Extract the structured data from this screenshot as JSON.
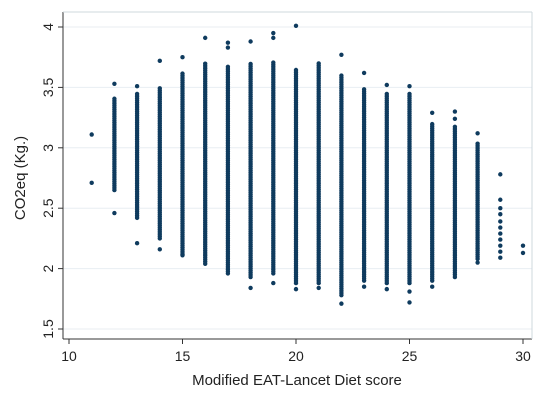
{
  "chart_data": {
    "type": "scatter",
    "xlabel": "Modified EAT-Lancet Diet score",
    "ylabel": "CO2eq (Kg.)",
    "xlim": [
      10,
      30
    ],
    "ylim": [
      1.5,
      4
    ],
    "xticks": [
      "10",
      "15",
      "20",
      "25",
      "30"
    ],
    "yticks": [
      "1.5",
      "2",
      "2.5",
      "3",
      "3.5",
      "4"
    ],
    "grid": "horizontal",
    "marker_color": "#0f3b5e",
    "point_columns": [
      {
        "x": 11,
        "y_points": [
          2.71,
          3.11
        ]
      },
      {
        "x": 12,
        "y_min": 2.65,
        "y_max": 3.42,
        "extremes": [
          2.46,
          3.53
        ]
      },
      {
        "x": 13,
        "y_min": 2.42,
        "y_max": 3.45,
        "extremes": [
          2.21,
          3.51
        ]
      },
      {
        "x": 14,
        "y_min": 2.25,
        "y_max": 3.5,
        "extremes": [
          2.16,
          3.72
        ]
      },
      {
        "x": 15,
        "y_min": 2.12,
        "y_max": 3.62,
        "extremes": [
          2.11,
          3.75
        ]
      },
      {
        "x": 16,
        "y_min": 2.04,
        "y_max": 3.7,
        "extremes": [
          3.91
        ]
      },
      {
        "x": 17,
        "y_min": 1.96,
        "y_max": 3.68,
        "extremes": [
          3.83,
          3.87
        ]
      },
      {
        "x": 18,
        "y_min": 1.93,
        "y_max": 3.7,
        "extremes": [
          1.84,
          3.88
        ]
      },
      {
        "x": 19,
        "y_min": 1.96,
        "y_max": 3.72,
        "extremes": [
          1.88,
          3.91,
          3.95
        ]
      },
      {
        "x": 20,
        "y_min": 1.88,
        "y_max": 3.65,
        "extremes": [
          1.83,
          4.01
        ]
      },
      {
        "x": 21,
        "y_min": 1.88,
        "y_max": 3.71,
        "extremes": [
          1.84
        ]
      },
      {
        "x": 22,
        "y_min": 1.78,
        "y_max": 3.6,
        "extremes": [
          1.71,
          3.77
        ]
      },
      {
        "x": 23,
        "y_min": 1.9,
        "y_max": 3.5,
        "extremes": [
          1.85,
          3.62
        ]
      },
      {
        "x": 24,
        "y_min": 1.88,
        "y_max": 3.45,
        "extremes": [
          1.83,
          3.52
        ]
      },
      {
        "x": 25,
        "y_min": 1.88,
        "y_max": 3.45,
        "extremes": [
          1.72,
          1.81,
          3.51
        ]
      },
      {
        "x": 26,
        "y_min": 1.9,
        "y_max": 3.2,
        "extremes": [
          1.85,
          3.29
        ]
      },
      {
        "x": 27,
        "y_min": 1.95,
        "y_max": 3.18,
        "extremes": [
          1.93,
          3.24,
          3.3
        ]
      },
      {
        "x": 28,
        "y_min": 2.08,
        "y_max": 3.05,
        "extremes": [
          2.05,
          3.12
        ]
      },
      {
        "x": 29,
        "y_points": [
          2.09,
          2.14,
          2.19,
          2.24,
          2.29,
          2.34,
          2.39,
          2.45,
          2.5,
          2.57,
          2.78
        ]
      },
      {
        "x": 30,
        "y_points": [
          2.13,
          2.19
        ]
      }
    ]
  }
}
